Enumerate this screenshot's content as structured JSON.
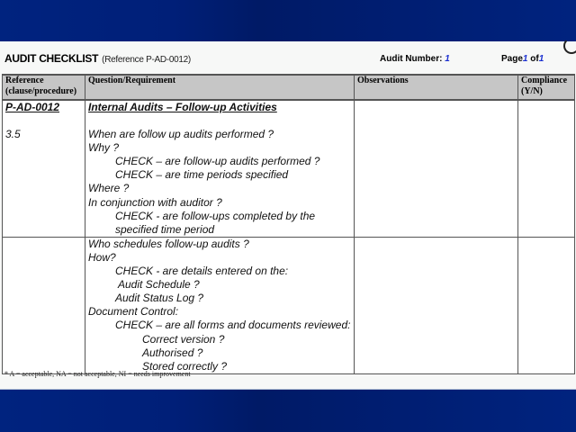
{
  "header": {
    "title": "AUDIT CHECKLIST",
    "reference": "(Reference P-AD-0012)",
    "audit_number_label": "Audit Number:",
    "audit_number": "1",
    "page_label": "Page",
    "page_current": "1",
    "page_of": "of",
    "page_total": "1"
  },
  "table": {
    "columns": [
      "Reference (clause/procedure)",
      "Question/Requirement",
      "Observations",
      "Compliance (Y/N)"
    ],
    "col_ref_1": "Reference",
    "col_ref_2": "(clause/procedure)",
    "col_comp_1": "Compliance",
    "col_comp_2": "(Y/N)",
    "rows": [
      {
        "ref": "P-AD-0012",
        "ref2": "3.5",
        "title": "Internal Audits – Follow-up Activities",
        "lines": [
          "When are follow up audits performed ?",
          "Why ?",
          "CHECK – are follow-up audits performed ?",
          "CHECK – are time periods specified",
          "Where ?",
          "In conjunction with auditor ?",
          "CHECK - are follow-ups completed by the",
          "specified time period"
        ]
      },
      {
        "lines": [
          "Who schedules follow-up audits ?",
          "How?",
          "CHECK - are details entered on the:",
          "Audit Schedule ?",
          "Audit Status Log ?",
          "Document Control:",
          "CHECK – are all forms and documents reviewed:",
          "Correct version ?",
          "Authorised ?",
          "Stored correctly ?"
        ]
      }
    ]
  },
  "footnote": "* A = acceptable, NA = not acceptable, NI = needs improvement",
  "colors": {
    "background": "#00237f",
    "header_fill": "#c6c6c6",
    "accent": "#1a2fd0"
  }
}
